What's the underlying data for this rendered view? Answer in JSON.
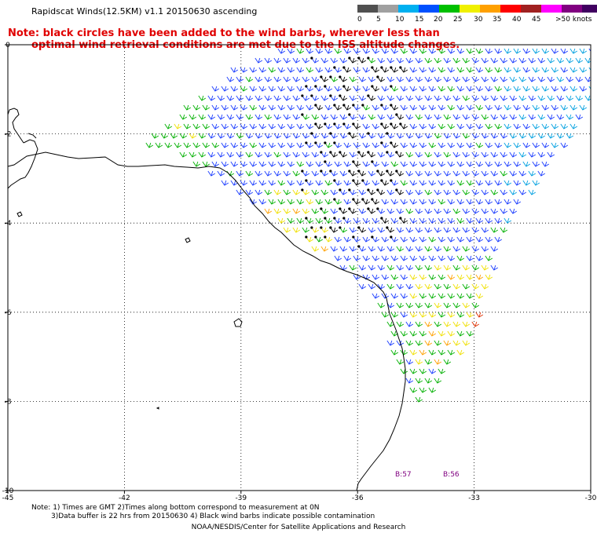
{
  "header": {
    "title": "Rapidscat Winds(12.5KM) v1.1 20150630 ascending",
    "note_line1": "Note: black circles have been added to the wind barbs, wherever less than",
    "note_line2": "optimal wind retrieval conditions are met due to the ISS altitude changes."
  },
  "legend": {
    "labels": [
      "0",
      "5",
      "10",
      "15",
      "20",
      "25",
      "30",
      "35",
      "40",
      "45",
      ">50 knots"
    ],
    "colors": [
      "#505050",
      "#a0a0a0",
      "#00b0f0",
      "#0050ff",
      "#00c000",
      "#f0f000",
      "#ffa000",
      "#ff0000",
      "#a02020",
      "#ff00ff",
      "#800080",
      "#400060"
    ]
  },
  "map": {
    "lon_ticks": [
      "-45",
      "-42",
      "-39",
      "-36",
      "-33",
      "-30"
    ],
    "lat_ticks": [
      "0",
      "-2",
      "-4",
      "-6",
      "-8",
      "-10"
    ],
    "lon_range": [
      -45,
      -30
    ],
    "lat_range": [
      -10,
      0
    ],
    "time_labels": [
      "B:57",
      "B:56"
    ],
    "barb_colors": {
      "blue": "#1a3cff",
      "cyan": "#00a0e0",
      "green": "#00b000",
      "yellow": "#f0e000",
      "orange": "#ffa000",
      "red": "#e03000",
      "black": "#000000"
    }
  },
  "footer": {
    "note_line1": "Note: 1) Times are GMT 2)Times along bottom correspond to measurement at 0N",
    "note_line2": "3)Data buffer is 22 hrs from 20150630 4) Black wind barbs indicate possible contamination",
    "credit": "NOAA/NESDIS/Center for Satellite Applications and Research"
  }
}
